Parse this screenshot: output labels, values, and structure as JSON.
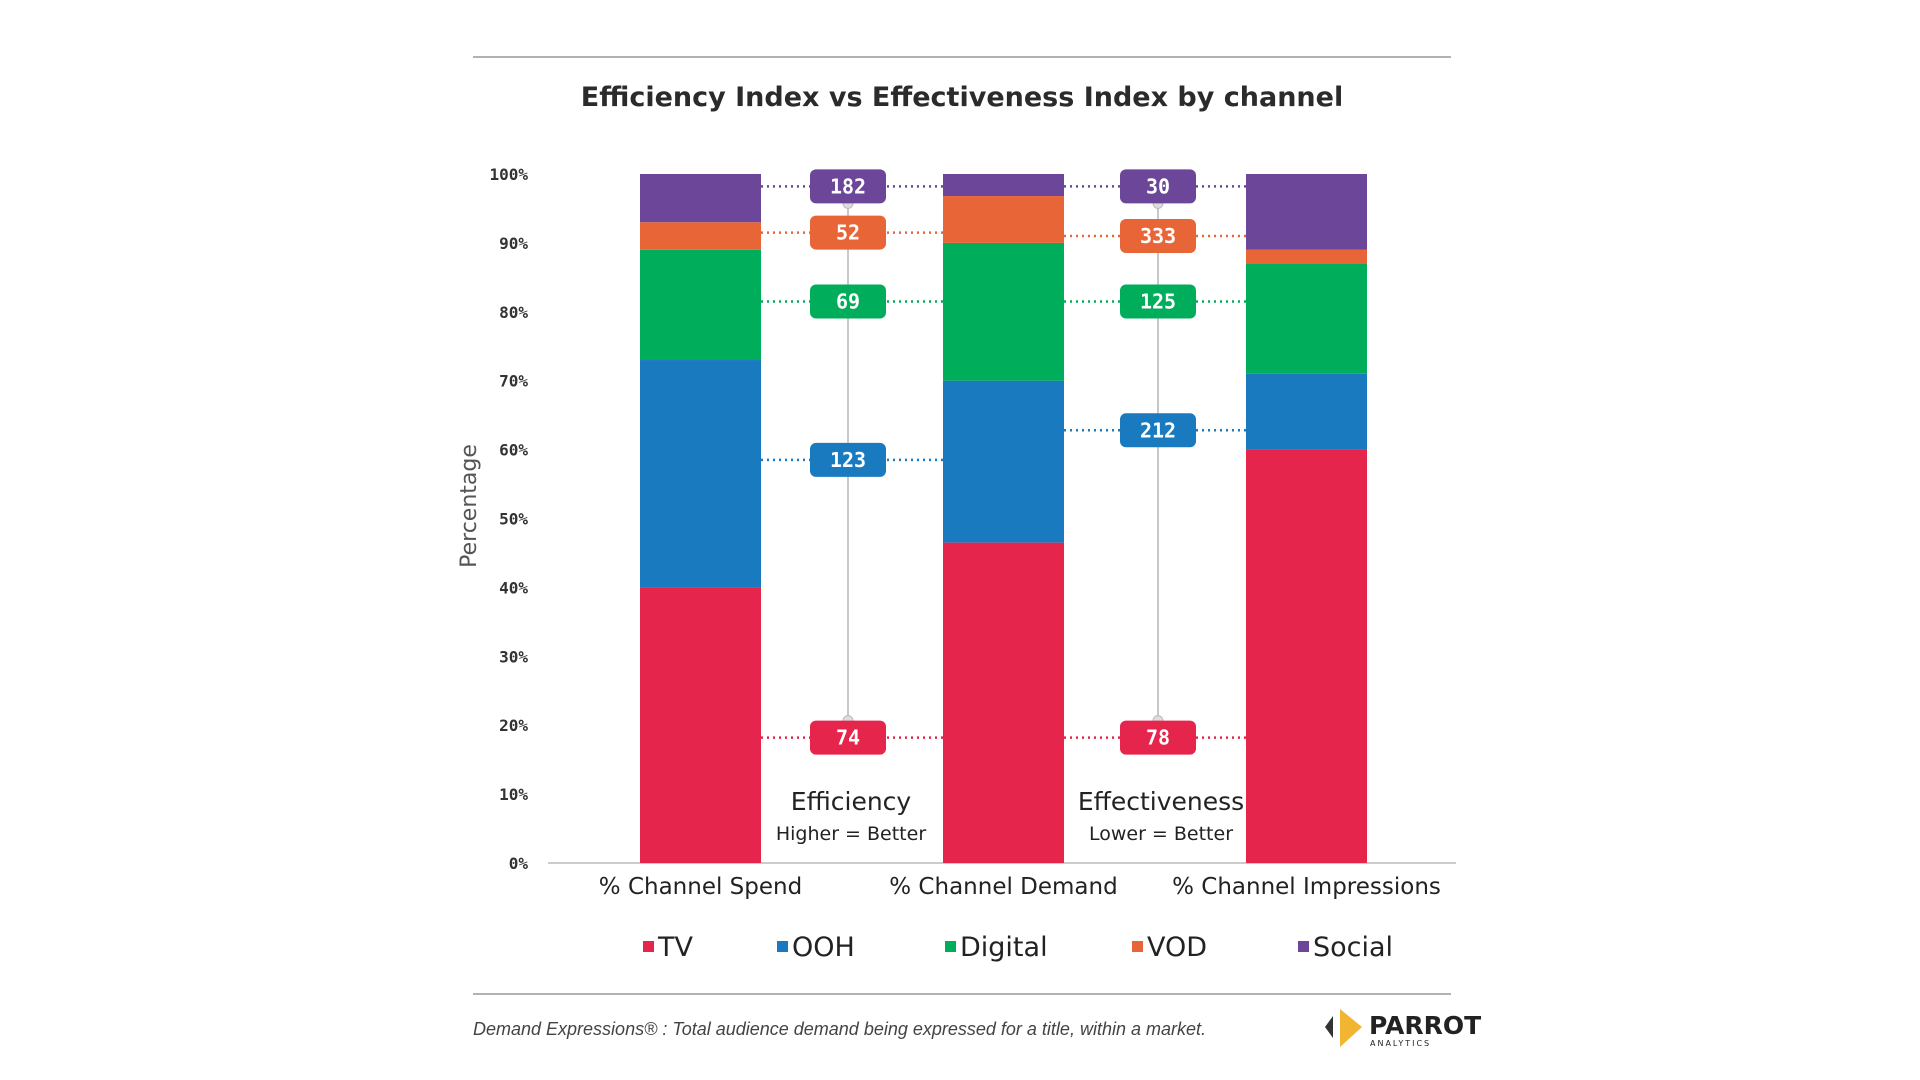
{
  "chart_data": {
    "type": "bar",
    "stacked": true,
    "title": "Efficiency Index vs Effectiveness Index by channel",
    "xlabel": "",
    "ylabel": "Percentage",
    "ylim": [
      0,
      100
    ],
    "y_ticks": [
      "0%",
      "10%",
      "20%",
      "30%",
      "40%",
      "50%",
      "60%",
      "70%",
      "80%",
      "90%",
      "100%"
    ],
    "categories": [
      "% Channel Spend",
      "% Channel Demand",
      "% Channel Impressions"
    ],
    "series": [
      {
        "name": "TV",
        "color": "#e5254c",
        "values": [
          40,
          46.5,
          60
        ]
      },
      {
        "name": "OOH",
        "color": "#1a7abf",
        "values": [
          33,
          23.5,
          11
        ]
      },
      {
        "name": "Digital",
        "color": "#00ad5a",
        "values": [
          16,
          20,
          16
        ]
      },
      {
        "name": "VOD",
        "color": "#e86537",
        "values": [
          4,
          6.8,
          2
        ]
      },
      {
        "name": "Social",
        "color": "#6b4699",
        "values": [
          7,
          3.2,
          11
        ]
      }
    ],
    "grid": false,
    "legend_position": "bottom",
    "indices": [
      {
        "title": "Efficiency",
        "subtitle": "Higher = Better",
        "badges": [
          {
            "series": "Social",
            "value": "182",
            "level": 98.2
          },
          {
            "series": "VOD",
            "value": "52",
            "level": 91.5
          },
          {
            "series": "Digital",
            "value": "69",
            "level": 81.5
          },
          {
            "series": "OOH",
            "value": "123",
            "level": 58.5
          },
          {
            "series": "TV",
            "value": "74",
            "level": 18.2
          }
        ]
      },
      {
        "title": "Effectiveness",
        "subtitle": "Lower = Better",
        "badges": [
          {
            "series": "Social",
            "value": "30",
            "level": 98.2
          },
          {
            "series": "VOD",
            "value": "333",
            "level": 91.0
          },
          {
            "series": "Digital",
            "value": "125",
            "level": 81.5
          },
          {
            "series": "OOH",
            "value": "212",
            "level": 62.8
          },
          {
            "series": "TV",
            "value": "78",
            "level": 18.2
          }
        ]
      }
    ]
  },
  "footer": {
    "note": "Demand Expressions® :  Total audience demand being expressed for a title, within a market."
  },
  "logo": {
    "name": "PARROT",
    "tagline": "ANALYTICS"
  }
}
